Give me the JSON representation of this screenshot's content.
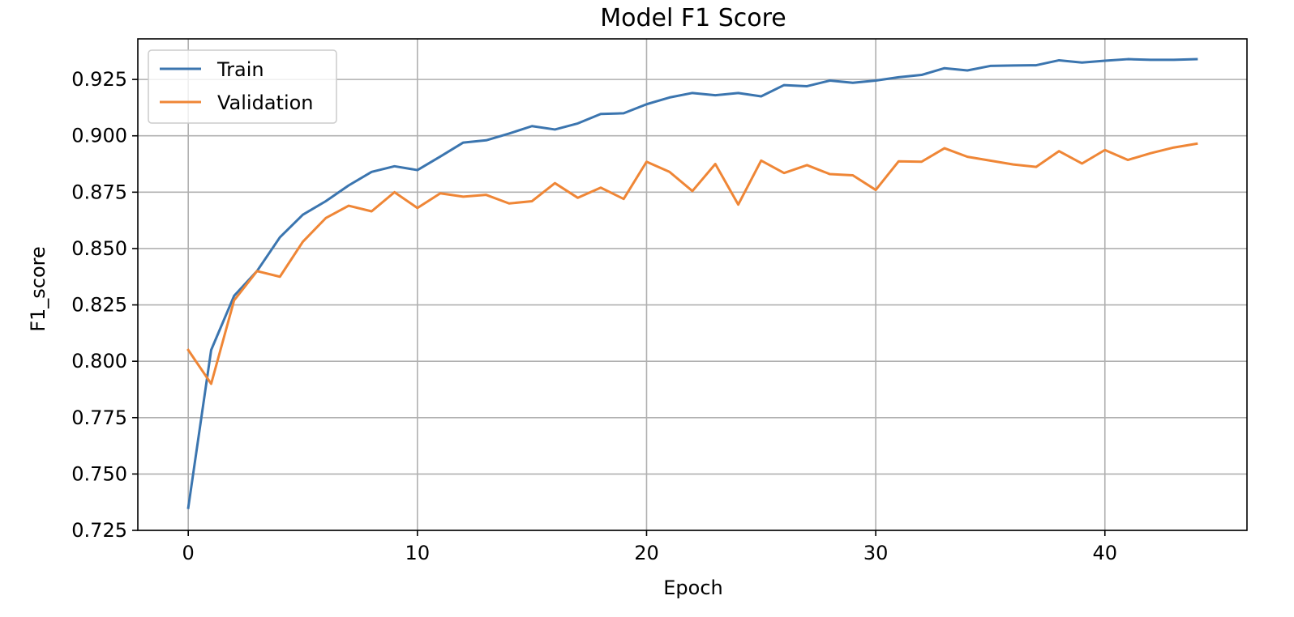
{
  "chart_data": {
    "type": "line",
    "title": "Model F1 Score",
    "xlabel": "Epoch",
    "ylabel": "F1_score",
    "xlim": [
      -2.2,
      46.2
    ],
    "ylim": [
      0.725,
      0.943
    ],
    "xticks": [
      0,
      10,
      20,
      30,
      40
    ],
    "yticks": [
      0.725,
      0.75,
      0.775,
      0.8,
      0.825,
      0.85,
      0.875,
      0.9,
      0.925
    ],
    "ytick_labels": [
      "0.725",
      "0.750",
      "0.775",
      "0.800",
      "0.825",
      "0.850",
      "0.875",
      "0.900",
      "0.925"
    ],
    "grid": true,
    "legend_position": "top-left",
    "x": [
      0,
      1,
      2,
      3,
      4,
      5,
      6,
      7,
      8,
      9,
      10,
      11,
      12,
      13,
      14,
      15,
      16,
      17,
      18,
      19,
      20,
      21,
      22,
      23,
      24,
      25,
      26,
      27,
      28,
      29,
      30,
      31,
      32,
      33,
      34,
      35,
      36,
      37,
      38,
      39,
      40,
      41,
      42,
      43,
      44
    ],
    "series": [
      {
        "name": "Train",
        "color": "#3b75af",
        "values": [
          0.735,
          0.805,
          0.829,
          0.84,
          0.855,
          0.865,
          0.871,
          0.878,
          0.884,
          0.8865,
          0.8848,
          0.8908,
          0.897,
          0.898,
          0.901,
          0.9043,
          0.9028,
          0.9055,
          0.9097,
          0.91,
          0.914,
          0.917,
          0.919,
          0.918,
          0.919,
          0.9175,
          0.9225,
          0.922,
          0.9245,
          0.9235,
          0.9245,
          0.926,
          0.927,
          0.93,
          0.929,
          0.931,
          0.9312,
          0.9313,
          0.9335,
          0.9325,
          0.9333,
          0.934,
          0.9337,
          0.9337,
          0.934
        ]
      },
      {
        "name": "Validation",
        "color": "#ef8636",
        "values": [
          0.805,
          0.79,
          0.827,
          0.84,
          0.8375,
          0.853,
          0.8635,
          0.869,
          0.8665,
          0.875,
          0.868,
          0.8745,
          0.873,
          0.8738,
          0.87,
          0.871,
          0.879,
          0.8725,
          0.877,
          0.872,
          0.8885,
          0.884,
          0.8755,
          0.8875,
          0.8695,
          0.889,
          0.8835,
          0.887,
          0.883,
          0.8825,
          0.876,
          0.8887,
          0.8885,
          0.8945,
          0.8907,
          0.889,
          0.8873,
          0.8862,
          0.8932,
          0.8877,
          0.8937,
          0.8893,
          0.8923,
          0.8948,
          0.8965
        ]
      }
    ]
  }
}
